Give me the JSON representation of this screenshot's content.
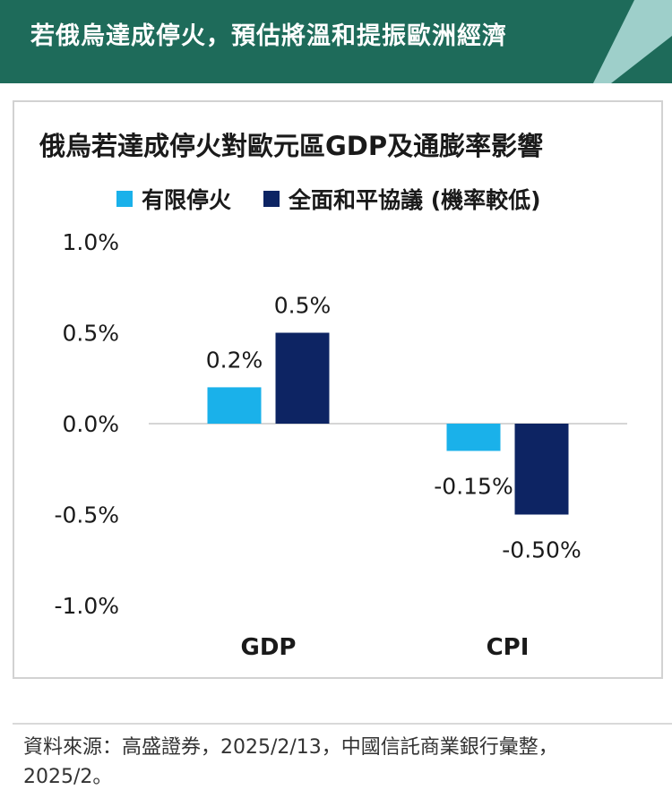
{
  "banner": {
    "title": "若俄烏達成停火，預估將溫和提振歐洲經濟",
    "colors": {
      "background": "#1e6b5a",
      "accent_stripe": "#9ecfca"
    }
  },
  "chart_data": {
    "type": "bar",
    "title": "俄烏若達成停火對歐元區GDP及通膨率影響",
    "categories": [
      "GDP",
      "CPI"
    ],
    "series": [
      {
        "name": "有限停火",
        "color": "#1ab1ea",
        "values": [
          0.2,
          -0.15
        ],
        "labels": [
          "0.2%",
          "-0.15%"
        ]
      },
      {
        "name": "全面和平協議 (機率較低)",
        "color": "#0d2463",
        "values": [
          0.5,
          -0.5
        ],
        "labels": [
          "0.5%",
          "-0.50%"
        ]
      }
    ],
    "ylim": [
      -1.0,
      1.0
    ],
    "yticks": [
      1.0,
      0.5,
      0.0,
      -0.5,
      -1.0
    ],
    "ytick_labels": [
      "1.0%",
      "0.5%",
      "0.0%",
      "-0.5%",
      "-1.0%"
    ],
    "grid": false,
    "legend": "top"
  },
  "source": {
    "text": "資料來源：高盛證券，2025/2/13，中國信託商業銀行彙整，2025/2。"
  }
}
